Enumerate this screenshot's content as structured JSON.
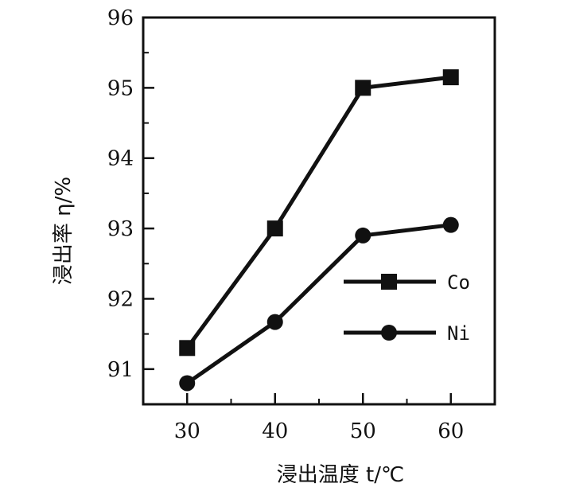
{
  "chart_data": {
    "type": "line",
    "x": [
      30,
      40,
      50,
      60
    ],
    "xticks": [
      "30",
      "40",
      "50",
      "60"
    ],
    "yticks": [
      "91",
      "92",
      "93",
      "94",
      "95",
      "96"
    ],
    "xlim": [
      25,
      65
    ],
    "ylim": [
      90.5,
      96
    ],
    "xlabel": "浸出温度 t/℃",
    "ylabel": "浸出率 η/%",
    "grid": false,
    "legend_position": "right",
    "series": [
      {
        "name": "Co",
        "marker": "square",
        "color": "#111111",
        "values": [
          91.3,
          93.0,
          95.0,
          95.15
        ]
      },
      {
        "name": "Ni",
        "marker": "circle",
        "color": "#111111",
        "values": [
          90.8,
          91.67,
          92.9,
          93.05
        ]
      }
    ]
  }
}
